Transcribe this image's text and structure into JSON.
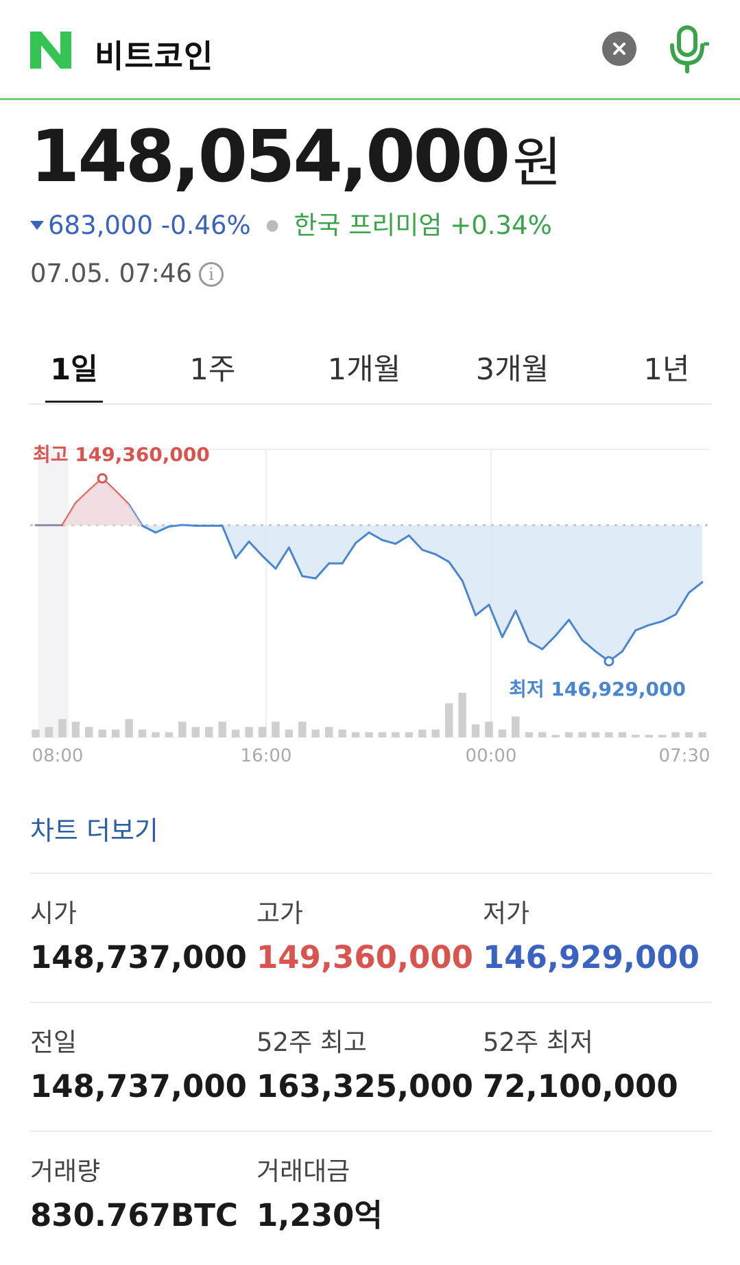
{
  "header": {
    "logo_letter": "N",
    "query": "비트코인",
    "icons": {
      "clear": "close-icon",
      "voice": "microphone-icon"
    }
  },
  "quote": {
    "price": "148,054,000",
    "unit": "원",
    "change_value": "683,000",
    "change_percent": "-0.46%",
    "premium_label": "한국 프리미엄",
    "premium_value": "+0.34%",
    "timestamp": "07.05. 07:46",
    "colors": {
      "down": "#3a63c0",
      "up": "#d9534f",
      "premium": "#3aa44a"
    }
  },
  "tabs": [
    {
      "label": "1일",
      "active": true
    },
    {
      "label": "1주",
      "active": false
    },
    {
      "label": "1개월",
      "active": false
    },
    {
      "label": "3개월",
      "active": false
    },
    {
      "label": "1년",
      "active": false
    }
  ],
  "chart_data": {
    "type": "area",
    "x_ticks": [
      "08:00",
      "16:00",
      "00:00",
      "07:30"
    ],
    "reference_value": 148737000,
    "high_label": "최고 149,360,000",
    "low_label": "최저 146,929,000",
    "high_value": 149360000,
    "low_value": 146929000,
    "ylim": [
      146600000,
      149700000
    ],
    "series": [
      {
        "values": [
          148737000,
          148737000,
          148737000,
          149030000,
          149200000,
          149360000,
          149190000,
          149010000,
          148730000,
          148640000,
          148720000,
          148740000,
          148730000,
          148730000,
          148730000,
          148300000,
          148520000,
          148330000,
          148160000,
          148440000,
          148060000,
          148030000,
          148230000,
          148230000,
          148500000,
          148640000,
          148540000,
          148490000,
          148600000,
          148410000,
          148350000,
          148250000,
          148000000,
          147540000,
          147680000,
          147250000,
          147600000,
          147190000,
          147090000,
          147270000,
          147480000,
          147210000,
          147060000,
          146929000,
          147060000,
          147340000,
          147410000,
          147460000,
          147550000,
          147840000,
          147980000
        ]
      }
    ],
    "volume": [
      3,
      4,
      7,
      6,
      4,
      3,
      3,
      7,
      3,
      2,
      2,
      6,
      4,
      4,
      6,
      3,
      4,
      4,
      6,
      3,
      6,
      3,
      4,
      3,
      2,
      2,
      2,
      2,
      2,
      3,
      3,
      13,
      17,
      5,
      6,
      3,
      8,
      2,
      2,
      1,
      2,
      2,
      2,
      2,
      2,
      1,
      1,
      1,
      2,
      2,
      2
    ],
    "colors": {
      "line": "#4a86d0",
      "fill": "#dbe8f7",
      "high": "#d9534f",
      "volume": "#cfcfcf"
    }
  },
  "more_chart_label": "차트 더보기",
  "stats": [
    [
      {
        "label": "시가",
        "value": "148,737,000",
        "tone": ""
      },
      {
        "label": "고가",
        "value": "149,360,000",
        "tone": "red"
      },
      {
        "label": "저가",
        "value": "146,929,000",
        "tone": "blue"
      }
    ],
    [
      {
        "label": "전일",
        "value": "148,737,000",
        "tone": ""
      },
      {
        "label": "52주 최고",
        "value": "163,325,000",
        "tone": ""
      },
      {
        "label": "52주 최저",
        "value": "72,100,000",
        "tone": ""
      }
    ],
    [
      {
        "label": "거래량",
        "value": "830.767BTC",
        "tone": ""
      },
      {
        "label": "거래대금",
        "value": "1,230억",
        "tone": ""
      }
    ]
  ]
}
